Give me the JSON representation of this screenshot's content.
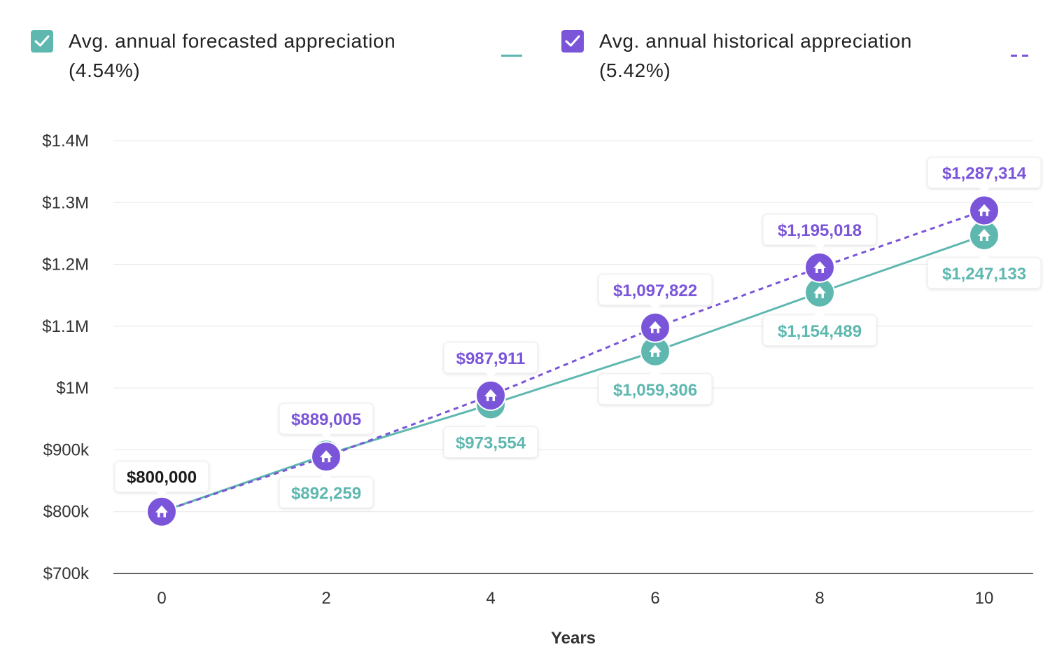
{
  "legend": {
    "forecast": {
      "checked": true,
      "line1": "Avg. annual forecasted appreciation",
      "line2": "(4.54%)",
      "color": "#5fb8b0",
      "style": "solid"
    },
    "historical": {
      "checked": true,
      "line1": "Avg. annual historical appreciation",
      "line2": "(5.42%)",
      "color": "#7b55d9",
      "style": "dashed"
    }
  },
  "chart_data": {
    "type": "line",
    "xlabel": "Years",
    "ylabel": "",
    "x": [
      0,
      2,
      4,
      6,
      8,
      10
    ],
    "ylim": [
      700000,
      1400000
    ],
    "y_ticks": [
      {
        "value": 1400000,
        "label": "$1.4M"
      },
      {
        "value": 1300000,
        "label": "$1.3M"
      },
      {
        "value": 1200000,
        "label": "$1.2M"
      },
      {
        "value": 1100000,
        "label": "$1.1M"
      },
      {
        "value": 1000000,
        "label": "$1M"
      },
      {
        "value": 900000,
        "label": "$900k"
      },
      {
        "value": 800000,
        "label": "$800k"
      },
      {
        "value": 700000,
        "label": "$700k"
      }
    ],
    "x_tick_labels": [
      "0",
      "2",
      "4",
      "6",
      "8",
      "10"
    ],
    "grid": true,
    "start_label": "$800,000",
    "series": [
      {
        "name": "Avg. annual forecasted appreciation (4.54%)",
        "color": "#5fb8b0",
        "style": "solid",
        "values": [
          800000,
          892259,
          973554,
          1059306,
          1154489,
          1247133
        ],
        "labels": [
          "$800,000",
          "$892,259",
          "$973,554",
          "$1,059,306",
          "$1,154,489",
          "$1,247,133"
        ]
      },
      {
        "name": "Avg. annual historical appreciation (5.42%)",
        "color": "#7b55d9",
        "style": "dashed",
        "values": [
          800000,
          889005,
          987911,
          1097822,
          1195018,
          1287314
        ],
        "labels": [
          "$800,000",
          "$889,005",
          "$987,911",
          "$1,097,822",
          "$1,195,018",
          "$1,287,314"
        ]
      }
    ],
    "marker_icon": "house-icon"
  }
}
